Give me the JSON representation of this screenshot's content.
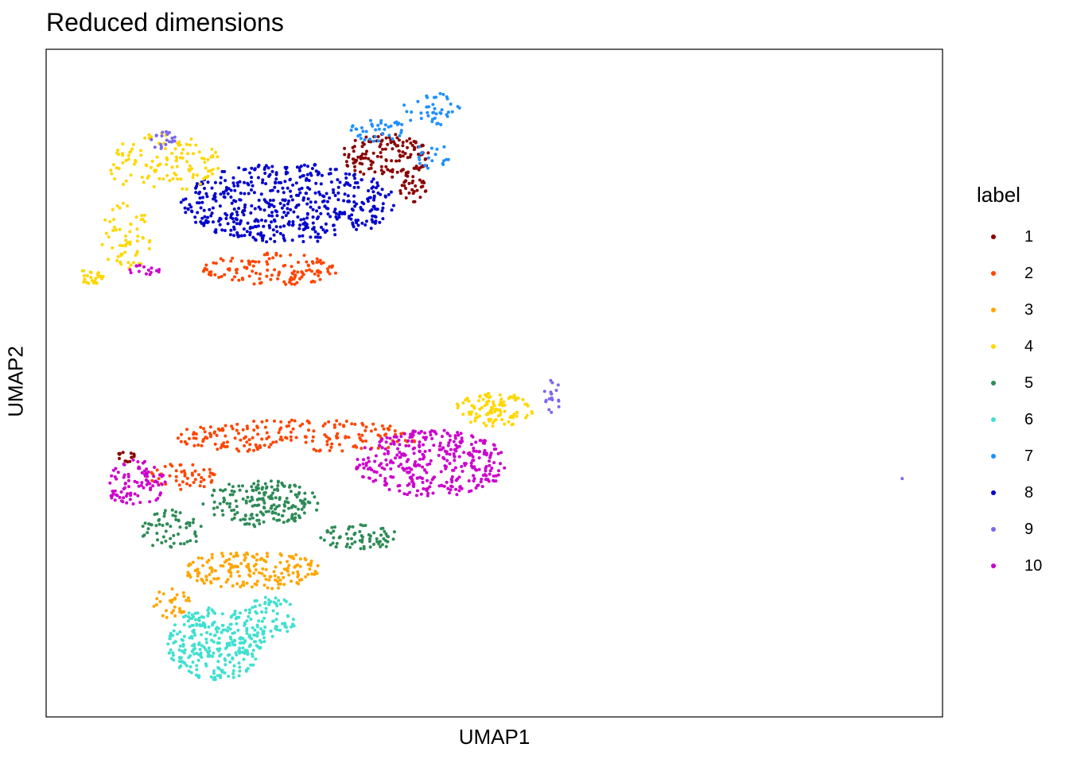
{
  "chart_data": {
    "type": "scatter",
    "title": "Reduced dimensions",
    "xlabel": "UMAP1",
    "ylabel": "UMAP2",
    "legend": {
      "title": "label",
      "placement": "right",
      "entries": [
        {
          "label": "1",
          "color": "#8B0000"
        },
        {
          "label": "2",
          "color": "#FF4500"
        },
        {
          "label": "3",
          "color": "#FFA500"
        },
        {
          "label": "4",
          "color": "#FFD700"
        },
        {
          "label": "5",
          "color": "#2E8B57"
        },
        {
          "label": "6",
          "color": "#40E0D0"
        },
        {
          "label": "7",
          "color": "#1E90FF"
        },
        {
          "label": "8",
          "color": "#0000CD"
        },
        {
          "label": "9",
          "color": "#7B68EE"
        },
        {
          "label": "10",
          "color": "#CD00CD"
        }
      ]
    },
    "axes_ticks": "none",
    "grid": false,
    "xlim": [
      0,
      1
    ],
    "ylim": [
      0,
      1
    ],
    "clusters": [
      {
        "label": "8",
        "cx": 0.27,
        "cy": 0.77,
        "rx": 0.12,
        "ry": 0.06,
        "n": 520
      },
      {
        "label": "4",
        "cx": 0.13,
        "cy": 0.83,
        "rx": 0.065,
        "ry": 0.045,
        "n": 120
      },
      {
        "label": "4",
        "cx": 0.09,
        "cy": 0.72,
        "rx": 0.03,
        "ry": 0.05,
        "n": 60
      },
      {
        "label": "4",
        "cx": 0.05,
        "cy": 0.66,
        "rx": 0.015,
        "ry": 0.012,
        "n": 25
      },
      {
        "label": "4",
        "cx": 0.5,
        "cy": 0.46,
        "rx": 0.045,
        "ry": 0.025,
        "n": 110
      },
      {
        "label": "9",
        "cx": 0.13,
        "cy": 0.865,
        "rx": 0.015,
        "ry": 0.015,
        "n": 20
      },
      {
        "label": "9",
        "cx": 0.565,
        "cy": 0.48,
        "rx": 0.01,
        "ry": 0.025,
        "n": 18
      },
      {
        "label": "9",
        "cx": 0.955,
        "cy": 0.357,
        "rx": 0.0,
        "ry": 0.0,
        "n": 1
      },
      {
        "label": "1",
        "cx": 0.38,
        "cy": 0.84,
        "rx": 0.05,
        "ry": 0.035,
        "n": 140
      },
      {
        "label": "1",
        "cx": 0.41,
        "cy": 0.79,
        "rx": 0.015,
        "ry": 0.02,
        "n": 30
      },
      {
        "label": "1",
        "cx": 0.09,
        "cy": 0.39,
        "rx": 0.012,
        "ry": 0.008,
        "n": 14
      },
      {
        "label": "7",
        "cx": 0.37,
        "cy": 0.88,
        "rx": 0.03,
        "ry": 0.018,
        "n": 40
      },
      {
        "label": "7",
        "cx": 0.43,
        "cy": 0.91,
        "rx": 0.035,
        "ry": 0.025,
        "n": 40
      },
      {
        "label": "7",
        "cx": 0.43,
        "cy": 0.84,
        "rx": 0.02,
        "ry": 0.02,
        "n": 20
      },
      {
        "label": "2",
        "cx": 0.25,
        "cy": 0.67,
        "rx": 0.075,
        "ry": 0.025,
        "n": 130
      },
      {
        "label": "2",
        "cx": 0.28,
        "cy": 0.42,
        "rx": 0.14,
        "ry": 0.025,
        "n": 200
      },
      {
        "label": "2",
        "cx": 0.15,
        "cy": 0.36,
        "rx": 0.04,
        "ry": 0.02,
        "n": 50
      },
      {
        "label": "10",
        "cx": 0.43,
        "cy": 0.38,
        "rx": 0.085,
        "ry": 0.05,
        "n": 360
      },
      {
        "label": "10",
        "cx": 0.1,
        "cy": 0.35,
        "rx": 0.035,
        "ry": 0.035,
        "n": 90
      },
      {
        "label": "10",
        "cx": 0.11,
        "cy": 0.67,
        "rx": 0.02,
        "ry": 0.008,
        "n": 15
      },
      {
        "label": "5",
        "cx": 0.24,
        "cy": 0.32,
        "rx": 0.065,
        "ry": 0.035,
        "n": 190
      },
      {
        "label": "5",
        "cx": 0.14,
        "cy": 0.28,
        "rx": 0.035,
        "ry": 0.03,
        "n": 60
      },
      {
        "label": "5",
        "cx": 0.35,
        "cy": 0.27,
        "rx": 0.045,
        "ry": 0.02,
        "n": 70
      },
      {
        "label": "3",
        "cx": 0.23,
        "cy": 0.22,
        "rx": 0.075,
        "ry": 0.03,
        "n": 180
      },
      {
        "label": "3",
        "cx": 0.14,
        "cy": 0.17,
        "rx": 0.02,
        "ry": 0.025,
        "n": 30
      },
      {
        "label": "6",
        "cx": 0.19,
        "cy": 0.11,
        "rx": 0.055,
        "ry": 0.055,
        "n": 300
      },
      {
        "label": "6",
        "cx": 0.25,
        "cy": 0.15,
        "rx": 0.03,
        "ry": 0.03,
        "n": 60
      }
    ]
  }
}
